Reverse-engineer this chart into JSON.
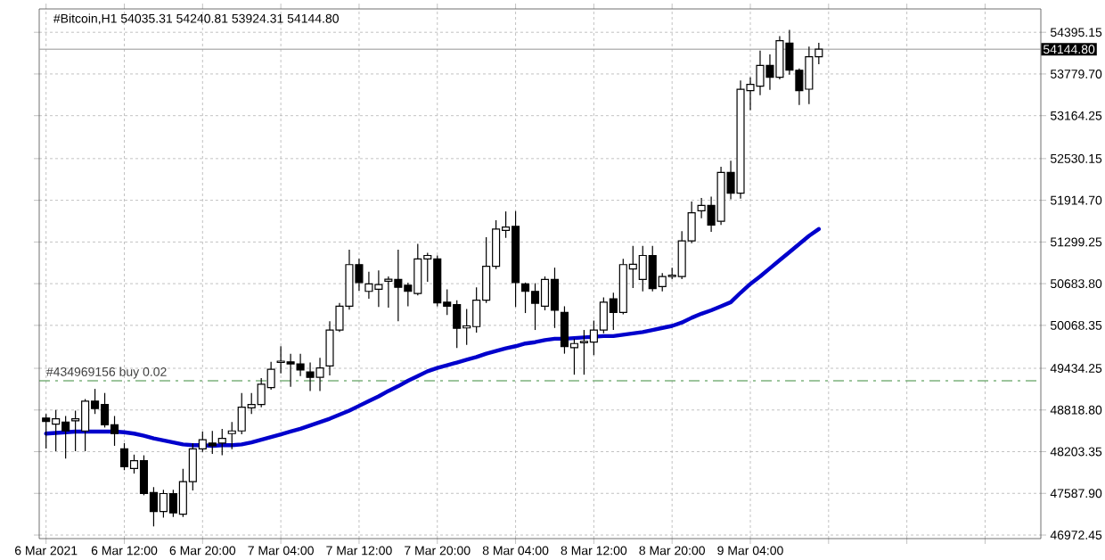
{
  "chart_data": {
    "type": "candlestick",
    "title": "#Bitcoin,H1  54035.31 54240.81 53924.31 54144.80",
    "categories": [
      "6 Mar 2021",
      null,
      null,
      null,
      null,
      null,
      null,
      null,
      "6 Mar 12:00",
      null,
      null,
      null,
      null,
      null,
      null,
      null,
      "6 Mar 20:00",
      null,
      null,
      null,
      null,
      null,
      null,
      null,
      "7 Mar 04:00",
      null,
      null,
      null,
      null,
      null,
      null,
      null,
      "7 Mar 12:00",
      null,
      null,
      null,
      null,
      null,
      null,
      null,
      "7 Mar 20:00",
      null,
      null,
      null,
      null,
      null,
      null,
      null,
      "8 Mar 04:00",
      null,
      null,
      null,
      null,
      null,
      null,
      null,
      "8 Mar 12:00",
      null,
      null,
      null,
      null,
      null,
      null,
      null,
      "8 Mar 20:00",
      null,
      null,
      null,
      null,
      null,
      null,
      null,
      "9 Mar 04:00",
      null,
      null,
      null,
      null,
      null,
      null,
      null
    ],
    "ohlc": [
      [
        48700,
        48760,
        48250,
        48650
      ],
      [
        48610,
        48820,
        48210,
        48690
      ],
      [
        48640,
        48730,
        48100,
        48510
      ],
      [
        48660,
        48810,
        48210,
        48690
      ],
      [
        48510,
        48980,
        48210,
        48950
      ],
      [
        48950,
        49130,
        48760,
        48840
      ],
      [
        48900,
        49070,
        48560,
        48600
      ],
      [
        48600,
        48730,
        48290,
        48470
      ],
      [
        48245,
        48330,
        47930,
        47980
      ],
      [
        47955,
        48160,
        47880,
        48070
      ],
      [
        48070,
        48150,
        47560,
        47585
      ],
      [
        47600,
        47680,
        47100,
        47320
      ],
      [
        47320,
        47640,
        47230,
        47585
      ],
      [
        47585,
        47640,
        47240,
        47300
      ],
      [
        47280,
        47950,
        47240,
        47760
      ],
      [
        47760,
        48330,
        47630,
        48245
      ],
      [
        48245,
        48500,
        48200,
        48380
      ],
      [
        48330,
        48510,
        48170,
        48290
      ],
      [
        48330,
        48540,
        48150,
        48400
      ],
      [
        48470,
        48640,
        48240,
        48510
      ],
      [
        48510,
        49070,
        48460,
        48860
      ],
      [
        48850,
        49070,
        48760,
        48900
      ],
      [
        48900,
        49290,
        48860,
        49200
      ],
      [
        49150,
        49530,
        49120,
        49420
      ],
      [
        49520,
        49760,
        49360,
        49540
      ],
      [
        49530,
        49650,
        49160,
        49500
      ],
      [
        49500,
        49650,
        49320,
        49410
      ],
      [
        49380,
        49520,
        49100,
        49300
      ],
      [
        49300,
        49590,
        49100,
        49440
      ],
      [
        49470,
        50130,
        49330,
        50000
      ],
      [
        50000,
        50400,
        49970,
        50350
      ],
      [
        50350,
        51185,
        50300,
        50965
      ],
      [
        50965,
        51050,
        50580,
        50700
      ],
      [
        50570,
        50860,
        50460,
        50680
      ],
      [
        50600,
        50880,
        50340,
        50670
      ],
      [
        50720,
        50790,
        50330,
        50750
      ],
      [
        50745,
        51185,
        50130,
        50630
      ],
      [
        50660,
        50700,
        50350,
        50570
      ],
      [
        50540,
        51270,
        50510,
        51050
      ],
      [
        51050,
        51140,
        50710,
        51100
      ],
      [
        51050,
        51100,
        50350,
        50400
      ],
      [
        50410,
        50600,
        50220,
        50350
      ],
      [
        50375,
        50440,
        49735,
        50025
      ],
      [
        50030,
        50310,
        49780,
        50060
      ],
      [
        50050,
        50630,
        49960,
        50440
      ],
      [
        50440,
        51370,
        50400,
        50940
      ],
      [
        50940,
        51620,
        50900,
        51490
      ],
      [
        51470,
        51750,
        51360,
        51520
      ],
      [
        51530,
        51755,
        50340,
        50700
      ],
      [
        50680,
        50700,
        50250,
        50570
      ],
      [
        50570,
        50690,
        50000,
        50395
      ],
      [
        50350,
        50790,
        50290,
        50745
      ],
      [
        50745,
        50920,
        50030,
        50290
      ],
      [
        50260,
        50350,
        49650,
        49755
      ],
      [
        49740,
        49870,
        49340,
        49800
      ],
      [
        49810,
        50000,
        49340,
        49830
      ],
      [
        49820,
        50140,
        49630,
        50000
      ],
      [
        50000,
        50480,
        49950,
        50410
      ],
      [
        50460,
        50550,
        50000,
        50260
      ],
      [
        50260,
        51050,
        50230,
        50965
      ],
      [
        50900,
        51240,
        50620,
        50970
      ],
      [
        50745,
        51240,
        50570,
        51100
      ],
      [
        51100,
        51240,
        50570,
        50610
      ],
      [
        50640,
        50840,
        50570,
        50790
      ],
      [
        50790,
        50920,
        50750,
        50810
      ],
      [
        50790,
        51460,
        50750,
        51315
      ],
      [
        51315,
        51895,
        51280,
        51730
      ],
      [
        51760,
        51950,
        51650,
        51840
      ],
      [
        51840,
        51970,
        51450,
        51550
      ],
      [
        51605,
        52410,
        51550,
        52325
      ],
      [
        52325,
        52500,
        51930,
        52020
      ],
      [
        52020,
        53685,
        51940,
        53553
      ],
      [
        53535,
        53730,
        53245,
        53625
      ],
      [
        53600,
        54125,
        53465,
        53905
      ],
      [
        53905,
        54070,
        53545,
        53730
      ],
      [
        53730,
        54340,
        53700,
        54270
      ],
      [
        54235,
        54430,
        53770,
        53835
      ],
      [
        53835,
        53860,
        53320,
        53535
      ],
      [
        53555,
        54185,
        53335,
        54035
      ],
      [
        54035.31,
        54240.81,
        53924.31,
        54144.8
      ]
    ],
    "series": [
      {
        "type": "line",
        "color": "#0000cc",
        "values": [
          48470,
          48480,
          48490,
          48500,
          48500,
          48500,
          48500,
          48500,
          48490,
          48470,
          48440,
          48400,
          48370,
          48340,
          48310,
          48300,
          48300,
          48290,
          48300,
          48300,
          48310,
          48340,
          48380,
          48420,
          48460,
          48500,
          48540,
          48590,
          48640,
          48690,
          48750,
          48810,
          48880,
          48950,
          49020,
          49100,
          49170,
          49250,
          49320,
          49390,
          49440,
          49480,
          49520,
          49560,
          49600,
          49650,
          49690,
          49730,
          49760,
          49800,
          49820,
          49850,
          49870,
          49870,
          49880,
          49890,
          49900,
          49910,
          49910,
          49930,
          49950,
          49970,
          50000,
          50030,
          50060,
          50110,
          50180,
          50240,
          50290,
          50350,
          50410,
          50550,
          50680,
          50790,
          50910,
          51030,
          51150,
          51270,
          51390,
          51490
        ]
      }
    ],
    "ylim": [
      46920,
      54740
    ],
    "yticks": [
      46972.45,
      {
        "value": 47587.9,
        "label": "47587.90"
      },
      48203.35,
      {
        "value": 48818.8,
        "label": "48818.80"
      },
      49434.25,
      50068.35,
      {
        "value": 50683.8,
        "label": "50683.80"
      },
      51299.25,
      {
        "value": 51914.7,
        "label": "51914.70"
      },
      52530.15,
      53164.25,
      {
        "value": 53779.7,
        "label": "53779.70"
      },
      54395.15
    ],
    "ref_lines": [
      {
        "axis": "y",
        "value": 49250,
        "label": "#434969156 buy 0.02",
        "color": "#3c8c3c",
        "line_style": "dashed"
      },
      {
        "axis": "y",
        "value": 54144.8,
        "label": "54144.80",
        "color": "#a0a0a0",
        "line_style": "solid"
      }
    ],
    "grid": true
  }
}
